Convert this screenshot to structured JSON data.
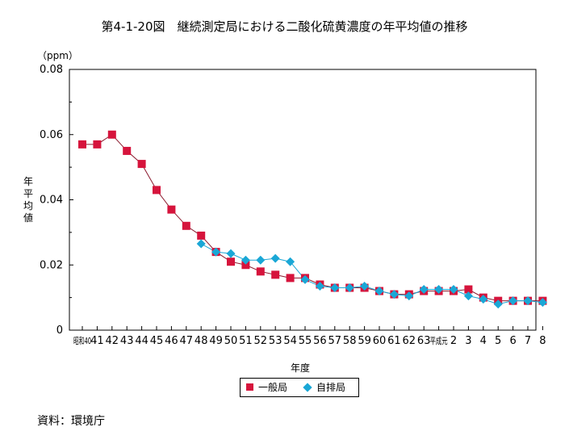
{
  "title": "第4-1-20図　継続測定局における二酸化硫黄濃度の年平均値の推移",
  "unit": "（ppm）",
  "ylabel": "年平均値",
  "xlabel": "年度",
  "legend": {
    "series1": "一般局",
    "series2": "自排局"
  },
  "source": "資料：環境庁",
  "colors": {
    "series1": "#d6143c",
    "series2": "#1aa7d6",
    "line": "#8b1a2e"
  },
  "chart_data": {
    "type": "line",
    "categories": [
      "昭和40",
      "41",
      "42",
      "43",
      "44",
      "45",
      "46",
      "47",
      "48",
      "49",
      "50",
      "51",
      "52",
      "53",
      "54",
      "55",
      "56",
      "57",
      "58",
      "59",
      "60",
      "61",
      "62",
      "63",
      "平成元",
      "2",
      "3",
      "4",
      "5",
      "6",
      "7",
      "8"
    ],
    "yticks": [
      "0",
      "0.02",
      "0.04",
      "0.06",
      "0.08"
    ],
    "ylim": [
      0,
      0.08
    ],
    "series": [
      {
        "name": "一般局",
        "marker": "square",
        "values": [
          0.057,
          0.057,
          0.06,
          0.055,
          0.051,
          0.043,
          0.037,
          0.032,
          0.029,
          0.024,
          0.021,
          0.02,
          0.018,
          0.017,
          0.016,
          0.016,
          0.014,
          0.013,
          0.013,
          0.013,
          0.012,
          0.011,
          0.011,
          0.012,
          0.012,
          0.012,
          0.0125,
          0.01,
          0.009,
          0.009,
          0.009,
          0.009
        ]
      },
      {
        "name": "自排局",
        "marker": "diamond",
        "values": [
          null,
          null,
          null,
          null,
          null,
          null,
          null,
          null,
          0.0265,
          0.024,
          0.0235,
          0.0215,
          0.0215,
          0.022,
          0.021,
          0.0155,
          0.0135,
          0.013,
          0.013,
          0.0135,
          0.012,
          0.011,
          0.0105,
          0.0125,
          0.0125,
          0.0125,
          0.0105,
          0.0095,
          0.008,
          0.009,
          0.009,
          0.0085
        ]
      }
    ]
  }
}
